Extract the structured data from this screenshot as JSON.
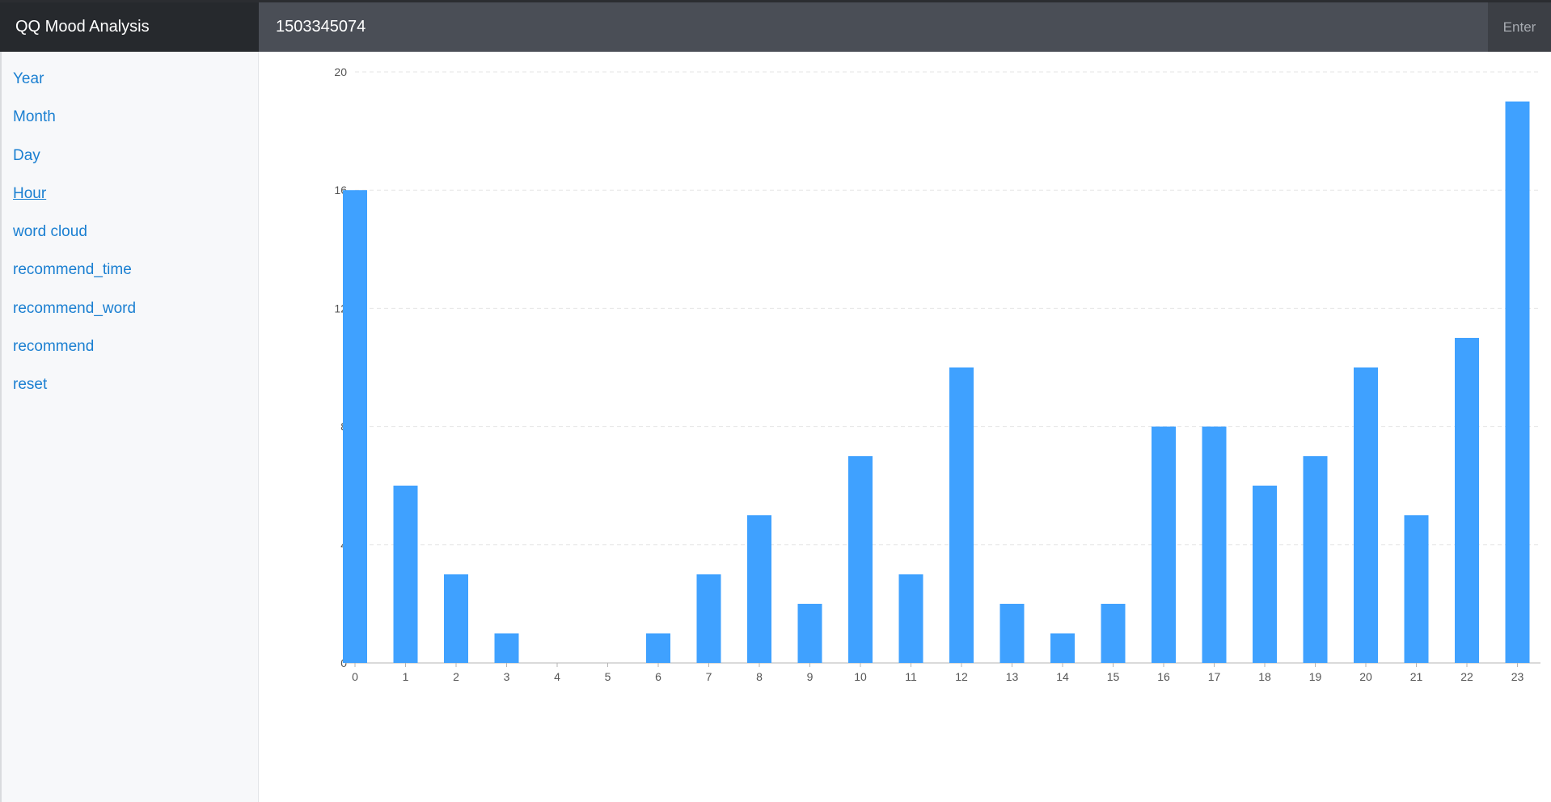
{
  "header": {
    "brand": "QQ Mood Analysis",
    "search_value": "1503345074",
    "enter_label": "Enter"
  },
  "sidebar": {
    "items": [
      {
        "label": "Year",
        "active": false
      },
      {
        "label": "Month",
        "active": false
      },
      {
        "label": "Day",
        "active": false
      },
      {
        "label": "Hour",
        "active": true
      },
      {
        "label": "word cloud",
        "active": false
      },
      {
        "label": "recommend_time",
        "active": false
      },
      {
        "label": "recommend_word",
        "active": false
      },
      {
        "label": "recommend",
        "active": false
      },
      {
        "label": "reset",
        "active": false
      }
    ]
  },
  "colors": {
    "bar": "#3fa1ff",
    "header": "#4a4e56",
    "brand_bg": "#26292d",
    "link": "#1a7fd1"
  },
  "chart_data": {
    "type": "bar",
    "categories": [
      "0",
      "1",
      "2",
      "3",
      "4",
      "5",
      "6",
      "7",
      "8",
      "9",
      "10",
      "11",
      "12",
      "13",
      "14",
      "15",
      "16",
      "17",
      "18",
      "19",
      "20",
      "21",
      "22",
      "23"
    ],
    "values": [
      16,
      6,
      3,
      1,
      0,
      0,
      1,
      3,
      5,
      2,
      7,
      3,
      10,
      2,
      1,
      2,
      8,
      8,
      6,
      7,
      10,
      5,
      11,
      19
    ],
    "ylim": [
      0,
      20
    ],
    "yticks": [
      0,
      4,
      8,
      12,
      16,
      20
    ],
    "grid": true,
    "title": "",
    "xlabel": "",
    "ylabel": ""
  }
}
